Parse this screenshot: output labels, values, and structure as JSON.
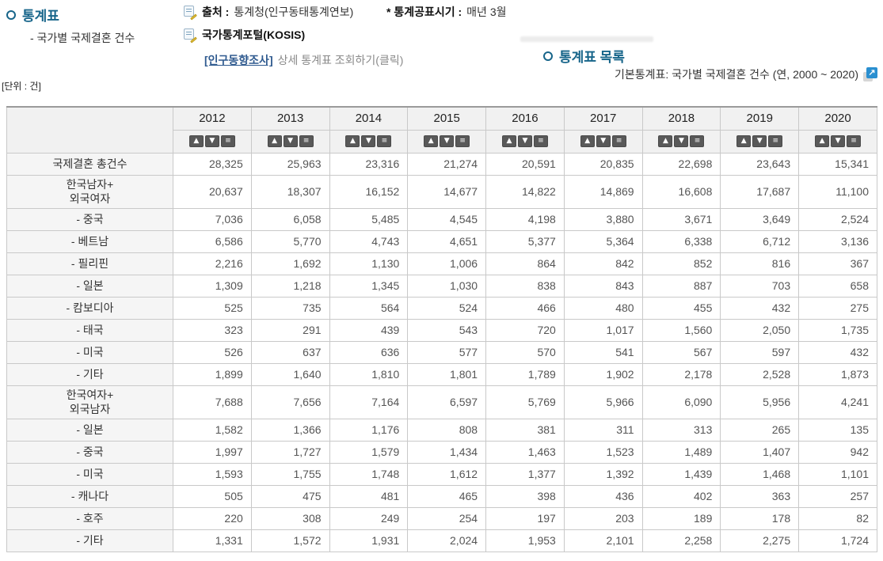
{
  "header": {
    "left_title": "통계표",
    "left_subtitle": "- 국가별 국제결혼 건수",
    "source_label": "출처 :",
    "source_value": "통계청(인구동태통계연보)",
    "publish_label": "* 통계공표시기 :",
    "publish_value": "매년 3월",
    "kosis_label": "국가통계포털(KOSIS)",
    "survey_link": "[인구동향조사]",
    "survey_desc": "상세 통계표 조회하기(클릭)",
    "right_title": "통계표 목록",
    "right_subtitle": "기본통계표: 국가별 국제결혼 건수 (연, 2000 ~ 2020)",
    "extlink_glyph": "↗",
    "unit": "[단위 : 건]"
  },
  "colors": {
    "title_teal": "#17658a",
    "link_blue": "#2f5a8f",
    "extlink_blue": "#2a8fd0",
    "header_bg": "#f1f1f1",
    "label_bg": "#f5f5f5",
    "border": "#c9c9c9",
    "sort_btn_bg": "#595959",
    "value_text": "#555555"
  },
  "chart_data": {
    "type": "table",
    "title": "국가별 국제결혼 건수",
    "unit": "건",
    "years": [
      "2012",
      "2013",
      "2014",
      "2015",
      "2016",
      "2017",
      "2018",
      "2019",
      "2020"
    ],
    "sort_buttons": [
      {
        "name": "sort-asc-button",
        "glyph": "▲"
      },
      {
        "name": "sort-desc-button",
        "glyph": "▼"
      },
      {
        "name": "sort-menu-button",
        "glyph": "≡"
      }
    ],
    "rows": [
      {
        "label": "국제결혼 총건수",
        "tall": false,
        "values": [
          "28,325",
          "25,963",
          "23,316",
          "21,274",
          "20,591",
          "20,835",
          "22,698",
          "23,643",
          "15,341"
        ]
      },
      {
        "label": "한국남자+\n외국여자",
        "tall": true,
        "values": [
          "20,637",
          "18,307",
          "16,152",
          "14,677",
          "14,822",
          "14,869",
          "16,608",
          "17,687",
          "11,100"
        ]
      },
      {
        "label": "- 중국",
        "tall": false,
        "values": [
          "7,036",
          "6,058",
          "5,485",
          "4,545",
          "4,198",
          "3,880",
          "3,671",
          "3,649",
          "2,524"
        ]
      },
      {
        "label": "- 베트남",
        "tall": false,
        "values": [
          "6,586",
          "5,770",
          "4,743",
          "4,651",
          "5,377",
          "5,364",
          "6,338",
          "6,712",
          "3,136"
        ]
      },
      {
        "label": "- 필리핀",
        "tall": false,
        "values": [
          "2,216",
          "1,692",
          "1,130",
          "1,006",
          "864",
          "842",
          "852",
          "816",
          "367"
        ]
      },
      {
        "label": "- 일본",
        "tall": false,
        "values": [
          "1,309",
          "1,218",
          "1,345",
          "1,030",
          "838",
          "843",
          "887",
          "703",
          "658"
        ]
      },
      {
        "label": "- 캄보디아",
        "tall": false,
        "values": [
          "525",
          "735",
          "564",
          "524",
          "466",
          "480",
          "455",
          "432",
          "275"
        ]
      },
      {
        "label": "- 태국",
        "tall": false,
        "values": [
          "323",
          "291",
          "439",
          "543",
          "720",
          "1,017",
          "1,560",
          "2,050",
          "1,735"
        ]
      },
      {
        "label": "- 미국",
        "tall": false,
        "values": [
          "526",
          "637",
          "636",
          "577",
          "570",
          "541",
          "567",
          "597",
          "432"
        ]
      },
      {
        "label": "- 기타",
        "tall": false,
        "values": [
          "1,899",
          "1,640",
          "1,810",
          "1,801",
          "1,789",
          "1,902",
          "2,178",
          "2,528",
          "1,873"
        ]
      },
      {
        "label": "한국여자+\n외국남자",
        "tall": true,
        "values": [
          "7,688",
          "7,656",
          "7,164",
          "6,597",
          "5,769",
          "5,966",
          "6,090",
          "5,956",
          "4,241"
        ]
      },
      {
        "label": "- 일본",
        "tall": false,
        "values": [
          "1,582",
          "1,366",
          "1,176",
          "808",
          "381",
          "311",
          "313",
          "265",
          "135"
        ]
      },
      {
        "label": "- 중국",
        "tall": false,
        "values": [
          "1,997",
          "1,727",
          "1,579",
          "1,434",
          "1,463",
          "1,523",
          "1,489",
          "1,407",
          "942"
        ]
      },
      {
        "label": "- 미국",
        "tall": false,
        "values": [
          "1,593",
          "1,755",
          "1,748",
          "1,612",
          "1,377",
          "1,392",
          "1,439",
          "1,468",
          "1,101"
        ]
      },
      {
        "label": "- 캐나다",
        "tall": false,
        "values": [
          "505",
          "475",
          "481",
          "465",
          "398",
          "436",
          "402",
          "363",
          "257"
        ]
      },
      {
        "label": "- 호주",
        "tall": false,
        "values": [
          "220",
          "308",
          "249",
          "254",
          "197",
          "203",
          "189",
          "178",
          "82"
        ]
      },
      {
        "label": "- 기타",
        "tall": false,
        "values": [
          "1,331",
          "1,572",
          "1,931",
          "2,024",
          "1,953",
          "2,101",
          "2,258",
          "2,275",
          "1,724"
        ]
      }
    ]
  }
}
